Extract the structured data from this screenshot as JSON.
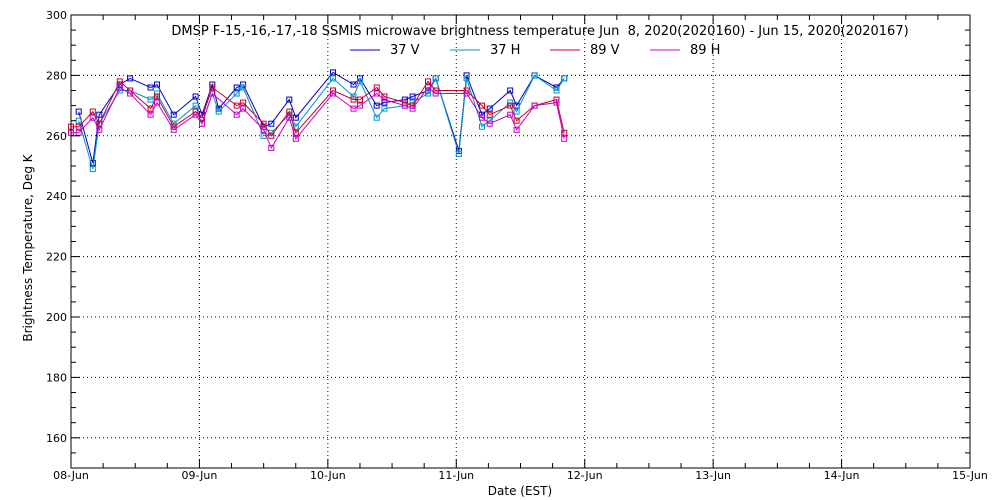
{
  "chart_data": {
    "type": "line",
    "title": "DMSP F-15,-16,-17,-18 SSMIS microwave brightness temperature Jun  8, 2020(2020160) - Jun 15, 2020(2020167)",
    "xlabel": "Date (EST)",
    "ylabel": "Brightness Temperature, Deg K",
    "x_tick_labels": [
      "08-Jun",
      "09-Jun",
      "10-Jun",
      "11-Jun",
      "12-Jun",
      "13-Jun",
      "14-Jun",
      "15-Jun"
    ],
    "x_tick_days": [
      0,
      1,
      2,
      3,
      4,
      5,
      6,
      7
    ],
    "xlim": [
      0,
      7
    ],
    "ylim": [
      150,
      300
    ],
    "y_tick_labels": [
      "160",
      "180",
      "200",
      "220",
      "240",
      "260",
      "280",
      "300"
    ],
    "y_tick_values": [
      160,
      180,
      200,
      220,
      240,
      260,
      280,
      300
    ],
    "grid": true,
    "legend_position": "top-center",
    "series": [
      {
        "name": "37 V",
        "color": "#0000c8",
        "points": [
          [
            0.06,
            268
          ],
          [
            0.17,
            251
          ],
          [
            0.22,
            267
          ],
          [
            0.38,
            277
          ],
          [
            0.46,
            279
          ],
          [
            0.62,
            276
          ],
          [
            0.67,
            277
          ],
          [
            0.8,
            267
          ],
          [
            0.97,
            273
          ],
          [
            1.02,
            267
          ],
          [
            1.1,
            277
          ],
          [
            1.15,
            269
          ],
          [
            1.29,
            276
          ],
          [
            1.34,
            277
          ],
          [
            1.5,
            263
          ],
          [
            1.56,
            264
          ],
          [
            1.7,
            272
          ],
          [
            1.75,
            266
          ],
          [
            2.04,
            281
          ],
          [
            2.2,
            277
          ],
          [
            2.25,
            279
          ],
          [
            2.38,
            270
          ],
          [
            2.44,
            271
          ],
          [
            2.6,
            272
          ],
          [
            2.66,
            273
          ],
          [
            2.78,
            275
          ],
          [
            2.84,
            279
          ],
          [
            3.02,
            255
          ],
          [
            3.08,
            280
          ],
          [
            3.2,
            267
          ],
          [
            3.26,
            269
          ],
          [
            3.42,
            275
          ],
          [
            3.47,
            270
          ],
          [
            3.61,
            280
          ],
          [
            3.78,
            276
          ],
          [
            3.84,
            279
          ]
        ]
      },
      {
        "name": "37 H",
        "color": "#0096c8",
        "points": [
          [
            0.06,
            265
          ],
          [
            0.17,
            249
          ],
          [
            0.22,
            264
          ],
          [
            0.38,
            275
          ],
          [
            0.46,
            275
          ],
          [
            0.62,
            272
          ],
          [
            0.67,
            274
          ],
          [
            0.8,
            264
          ],
          [
            0.97,
            270
          ],
          [
            1.02,
            264
          ],
          [
            1.1,
            274
          ],
          [
            1.15,
            268
          ],
          [
            1.29,
            274
          ],
          [
            1.34,
            276
          ],
          [
            1.5,
            260
          ],
          [
            1.56,
            261
          ],
          [
            1.7,
            267
          ],
          [
            1.75,
            263
          ],
          [
            2.04,
            279
          ],
          [
            2.2,
            273
          ],
          [
            2.25,
            278
          ],
          [
            2.38,
            266
          ],
          [
            2.44,
            269
          ],
          [
            2.6,
            270
          ],
          [
            2.66,
            271
          ],
          [
            2.78,
            274
          ],
          [
            2.84,
            279
          ],
          [
            3.02,
            254
          ],
          [
            3.08,
            279
          ],
          [
            3.2,
            263
          ],
          [
            3.26,
            265
          ],
          [
            3.42,
            271
          ],
          [
            3.47,
            268
          ],
          [
            3.61,
            280
          ],
          [
            3.78,
            275
          ],
          [
            3.84,
            279
          ]
        ]
      },
      {
        "name": "89 V",
        "color": "#c80028",
        "points": [
          [
            0,
            263
          ],
          [
            0.06,
            263
          ],
          [
            0.17,
            268
          ],
          [
            0.22,
            264
          ],
          [
            0.38,
            278
          ],
          [
            0.46,
            275
          ],
          [
            0.62,
            269
          ],
          [
            0.67,
            273
          ],
          [
            0.8,
            263
          ],
          [
            0.97,
            268
          ],
          [
            1.02,
            266
          ],
          [
            1.1,
            276
          ],
          [
            1.29,
            270
          ],
          [
            1.34,
            271
          ],
          [
            1.5,
            264
          ],
          [
            1.56,
            260
          ],
          [
            1.7,
            268
          ],
          [
            1.75,
            261
          ],
          [
            2.04,
            275
          ],
          [
            2.2,
            272
          ],
          [
            2.25,
            272
          ],
          [
            2.38,
            276
          ],
          [
            2.44,
            273
          ],
          [
            2.6,
            271
          ],
          [
            2.66,
            270
          ],
          [
            2.78,
            278
          ],
          [
            2.84,
            275
          ],
          [
            3.08,
            275
          ],
          [
            3.2,
            270
          ],
          [
            3.26,
            267
          ],
          [
            3.42,
            270
          ],
          [
            3.47,
            265
          ],
          [
            3.61,
            270
          ],
          [
            3.78,
            272
          ],
          [
            3.84,
            261
          ]
        ]
      },
      {
        "name": "89 H",
        "color": "#c800c8",
        "points": [
          [
            0,
            261
          ],
          [
            0.06,
            261
          ],
          [
            0.17,
            266
          ],
          [
            0.22,
            262
          ],
          [
            0.38,
            276
          ],
          [
            0.46,
            274
          ],
          [
            0.62,
            267
          ],
          [
            0.67,
            271
          ],
          [
            0.8,
            262
          ],
          [
            0.97,
            267
          ],
          [
            1.02,
            264
          ],
          [
            1.1,
            274
          ],
          [
            1.29,
            267
          ],
          [
            1.34,
            269
          ],
          [
            1.5,
            262
          ],
          [
            1.56,
            256
          ],
          [
            1.7,
            266
          ],
          [
            1.75,
            259
          ],
          [
            2.04,
            274
          ],
          [
            2.2,
            269
          ],
          [
            2.25,
            270
          ],
          [
            2.38,
            274
          ],
          [
            2.44,
            272
          ],
          [
            2.6,
            270
          ],
          [
            2.66,
            269
          ],
          [
            2.78,
            276
          ],
          [
            2.84,
            274
          ],
          [
            3.08,
            274
          ],
          [
            3.2,
            266
          ],
          [
            3.26,
            264
          ],
          [
            3.42,
            267
          ],
          [
            3.47,
            262
          ],
          [
            3.61,
            270
          ],
          [
            3.78,
            271
          ],
          [
            3.84,
            259
          ]
        ]
      }
    ]
  }
}
